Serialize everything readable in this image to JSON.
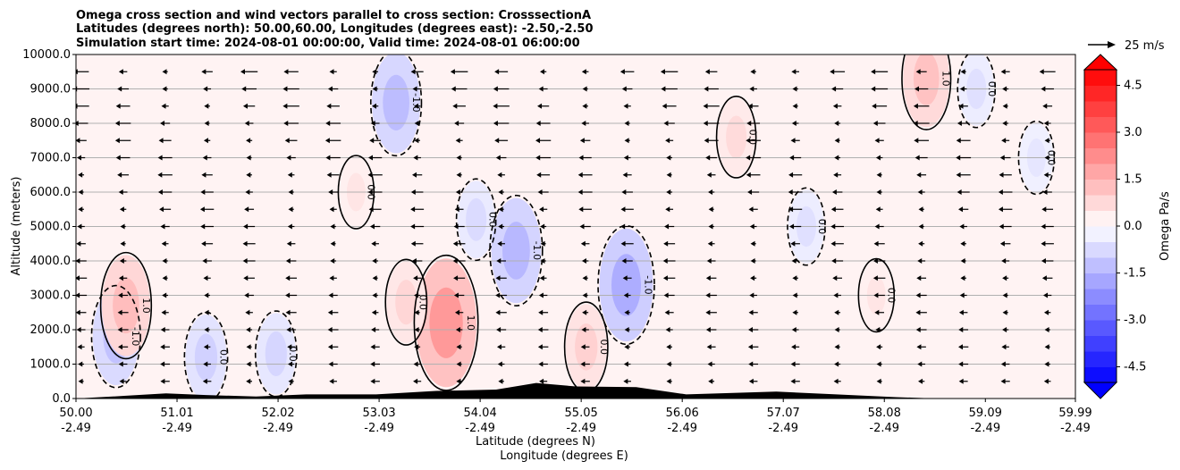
{
  "chart_data": {
    "type": "contourf_quiver_cross_section",
    "title_lines": [
      "Omega cross section and wind vectors parallel to cross section: CrosssectionA",
      "Latitudes (degrees north): 50.00,60.00, Longitudes (degrees east): -2.50,-2.50",
      "Simulation start time: 2024-08-01 00:00:00, Valid time: 2024-08-01 06:00:00"
    ],
    "ylabel": "Altitude (meters)",
    "xlabel_lines": [
      "Latitude (degrees N)",
      "Longitude (degrees E)"
    ],
    "ylim": [
      0,
      10000
    ],
    "yticks": [
      "0.0",
      "1000.0",
      "2000.0",
      "3000.0",
      "4000.0",
      "5000.0",
      "6000.0",
      "7000.0",
      "8000.0",
      "9000.0",
      "10000.0"
    ],
    "ytick_values": [
      0,
      1000,
      2000,
      3000,
      4000,
      5000,
      6000,
      7000,
      8000,
      9000,
      10000
    ],
    "xlim": [
      50.0,
      59.99
    ],
    "xticks": [
      {
        "lat": "50.00",
        "lon": "-2.49",
        "value": 50.0
      },
      {
        "lat": "51.01",
        "lon": "-2.49",
        "value": 51.01
      },
      {
        "lat": "52.02",
        "lon": "-2.49",
        "value": 52.02
      },
      {
        "lat": "53.03",
        "lon": "-2.49",
        "value": 53.03
      },
      {
        "lat": "54.04",
        "lon": "-2.49",
        "value": 54.04
      },
      {
        "lat": "55.05",
        "lon": "-2.49",
        "value": 55.05
      },
      {
        "lat": "56.06",
        "lon": "-2.49",
        "value": 56.06
      },
      {
        "lat": "57.07",
        "lon": "-2.49",
        "value": 57.07
      },
      {
        "lat": "58.08",
        "lon": "-2.49",
        "value": 58.08
      },
      {
        "lat": "59.09",
        "lon": "-2.49",
        "value": 59.09
      },
      {
        "lat": "59.99",
        "lon": "-2.49",
        "value": 59.99
      }
    ],
    "grid": "horizontal",
    "colorbar": {
      "label": "Omega Pa/s",
      "range": [
        -5,
        5
      ],
      "ticks": [
        "-4.5",
        "-3.0",
        "-1.5",
        "0.0",
        "1.5",
        "3.0",
        "4.5"
      ],
      "tick_values": [
        -4.5,
        -3.0,
        -1.5,
        0.0,
        1.5,
        3.0,
        4.5
      ],
      "colormap": "bwr",
      "extend": "both"
    },
    "quiver_key": {
      "label": "25 m/s",
      "speed": 25
    },
    "contour_levels": [
      -1.0,
      0.0,
      1.0
    ],
    "contour_labels": [
      "-1.0",
      "0.0",
      "1.0"
    ],
    "omega_features": [
      {
        "lat": 50.4,
        "z": 1800,
        "value": -1.2
      },
      {
        "lat": 50.5,
        "z": 2700,
        "value": 1.3
      },
      {
        "lat": 51.3,
        "z": 1200,
        "value": -0.9
      },
      {
        "lat": 52.0,
        "z": 1300,
        "value": -0.8
      },
      {
        "lat": 53.2,
        "z": 8600,
        "value": -1.3
      },
      {
        "lat": 53.7,
        "z": 2200,
        "value": 2.0
      },
      {
        "lat": 53.3,
        "z": 2800,
        "value": 0.8
      },
      {
        "lat": 54.0,
        "z": 5200,
        "value": -0.7
      },
      {
        "lat": 54.4,
        "z": 4300,
        "value": -1.4
      },
      {
        "lat": 55.5,
        "z": 3300,
        "value": -1.6
      },
      {
        "lat": 55.1,
        "z": 1500,
        "value": 0.9
      },
      {
        "lat": 56.6,
        "z": 7600,
        "value": 0.7
      },
      {
        "lat": 57.3,
        "z": 5000,
        "value": -0.6
      },
      {
        "lat": 58.5,
        "z": 9300,
        "value": 1.2
      },
      {
        "lat": 59.0,
        "z": 9000,
        "value": -0.6
      },
      {
        "lat": 59.6,
        "z": 7000,
        "value": -0.5
      },
      {
        "lat": 58.0,
        "z": 3000,
        "value": 0.5
      },
      {
        "lat": 52.8,
        "z": 6000,
        "value": 0.5
      }
    ],
    "wind_direction": "toward decreasing latitude (leftward)",
    "terrain": [
      {
        "lat": 50.5,
        "h": 80
      },
      {
        "lat": 50.9,
        "h": 150
      },
      {
        "lat": 51.3,
        "h": 100
      },
      {
        "lat": 51.8,
        "h": 60
      },
      {
        "lat": 52.3,
        "h": 120
      },
      {
        "lat": 53.0,
        "h": 120
      },
      {
        "lat": 53.6,
        "h": 220
      },
      {
        "lat": 54.2,
        "h": 260
      },
      {
        "lat": 54.6,
        "h": 450
      },
      {
        "lat": 55.0,
        "h": 350
      },
      {
        "lat": 55.6,
        "h": 330
      },
      {
        "lat": 56.1,
        "h": 120
      },
      {
        "lat": 57.0,
        "h": 200
      },
      {
        "lat": 57.6,
        "h": 120
      },
      {
        "lat": 58.2,
        "h": 40
      }
    ]
  }
}
